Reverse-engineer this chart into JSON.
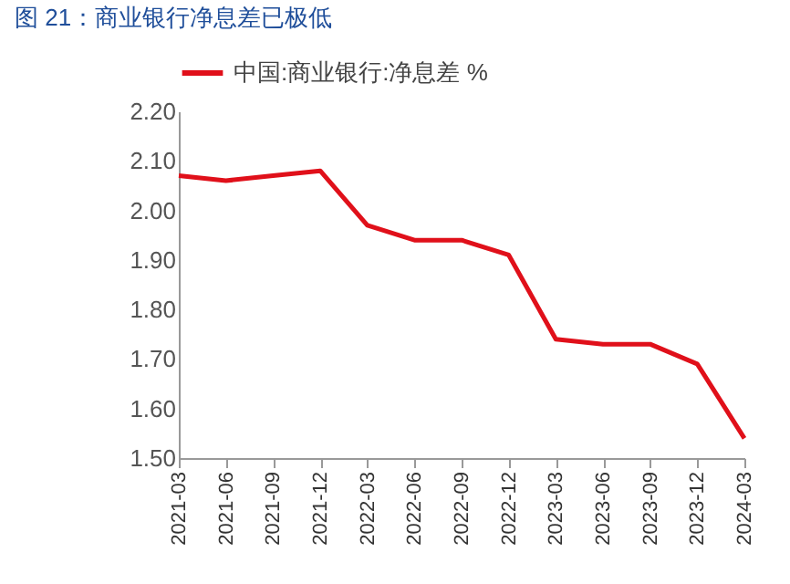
{
  "chart_data": {
    "type": "line",
    "title": "图 21：商业银行净息差已极低",
    "categories": [
      "2021-03",
      "2021-06",
      "2021-09",
      "2021-12",
      "2022-03",
      "2022-06",
      "2022-09",
      "2022-12",
      "2023-03",
      "2023-06",
      "2023-09",
      "2023-12",
      "2024-03"
    ],
    "series": [
      {
        "name": "中国:商业银行:净息差 %",
        "color": "#e0101a",
        "values": [
          2.07,
          2.06,
          2.07,
          2.08,
          1.97,
          1.94,
          1.94,
          1.91,
          1.74,
          1.73,
          1.73,
          1.69,
          1.54
        ]
      }
    ],
    "ylim": [
      1.5,
      2.2
    ],
    "yticks": [
      {
        "value": 1.5,
        "label": "1.50"
      },
      {
        "value": 1.6,
        "label": "1.60"
      },
      {
        "value": 1.7,
        "label": "1.70"
      },
      {
        "value": 1.8,
        "label": "1.80"
      },
      {
        "value": 1.9,
        "label": "1.90"
      },
      {
        "value": 2.0,
        "label": "2.00"
      },
      {
        "value": 2.1,
        "label": "2.10"
      },
      {
        "value": 2.2,
        "label": "2.20"
      }
    ],
    "grid": false,
    "legend": "top",
    "marker": "none",
    "line_style": "solid"
  }
}
